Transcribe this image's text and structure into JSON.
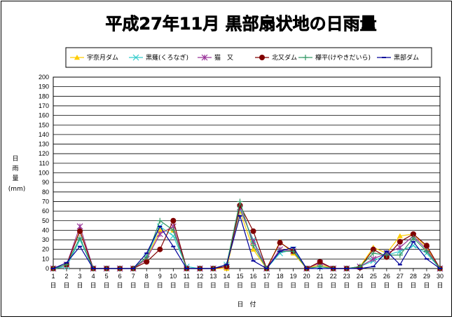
{
  "chart_data": {
    "type": "line",
    "title": "平成27年11月 黒部扇状地の日雨量",
    "ylabel_chars": [
      "日",
      "雨",
      "量"
    ],
    "yunit": "(mm)",
    "xlabel": "日　付",
    "x": [
      1,
      2,
      3,
      4,
      5,
      6,
      7,
      8,
      9,
      10,
      11,
      12,
      13,
      14,
      15,
      16,
      17,
      18,
      19,
      20,
      21,
      22,
      23,
      24,
      25,
      26,
      27,
      28,
      29,
      30
    ],
    "x_suffix": "日",
    "ylim": [
      0,
      200
    ],
    "ytick_step": 10,
    "grid": true,
    "legend": "top",
    "series": [
      {
        "name": "宇奈月ダム",
        "color": "#ffcc00",
        "marker": "triangle",
        "values": [
          0,
          4,
          40,
          0,
          0,
          0,
          0,
          10,
          40,
          40,
          0,
          0,
          0,
          0,
          60,
          20,
          0,
          28,
          16,
          0,
          4,
          0,
          0,
          2,
          22,
          16,
          34,
          36,
          22,
          0
        ]
      },
      {
        "name": "黒薙(くろなぎ)",
        "color": "#33cccc",
        "marker": "x",
        "values": [
          0,
          2,
          30,
          0,
          0,
          0,
          0,
          12,
          44,
          34,
          2,
          0,
          0,
          4,
          62,
          30,
          0,
          16,
          20,
          0,
          2,
          0,
          0,
          2,
          8,
          14,
          18,
          24,
          16,
          0
        ]
      },
      {
        "name": "猫　又",
        "color": "#993399",
        "marker": "star",
        "values": [
          0,
          4,
          44,
          0,
          0,
          0,
          0,
          10,
          36,
          44,
          0,
          0,
          0,
          2,
          64,
          28,
          0,
          20,
          18,
          0,
          6,
          0,
          0,
          2,
          10,
          16,
          22,
          34,
          20,
          0
        ]
      },
      {
        "name": "北又ダム",
        "color": "#800000",
        "marker": "circle",
        "values": [
          0,
          4,
          39,
          0,
          0,
          0,
          0,
          7,
          20,
          50,
          0,
          0,
          0,
          2,
          66,
          39,
          0,
          27,
          18,
          0,
          7,
          0,
          0,
          1,
          20,
          12,
          28,
          36,
          24,
          0
        ]
      },
      {
        "name": "欅平(けやきだいら)",
        "color": "#339966",
        "marker": "plus",
        "values": [
          0,
          4,
          32,
          0,
          0,
          0,
          0,
          12,
          50,
          40,
          0,
          0,
          0,
          4,
          70,
          24,
          0,
          18,
          18,
          0,
          2,
          0,
          0,
          2,
          16,
          14,
          14,
          32,
          18,
          0
        ]
      },
      {
        "name": "黒部ダム",
        "color": "#000099",
        "marker": "dash",
        "values": [
          0,
          6,
          23,
          0,
          0,
          0,
          0,
          16,
          44,
          23,
          0,
          0,
          0,
          4,
          55,
          8,
          0,
          18,
          22,
          0,
          0,
          0,
          0,
          0,
          2,
          18,
          4,
          28,
          10,
          0
        ]
      }
    ]
  }
}
